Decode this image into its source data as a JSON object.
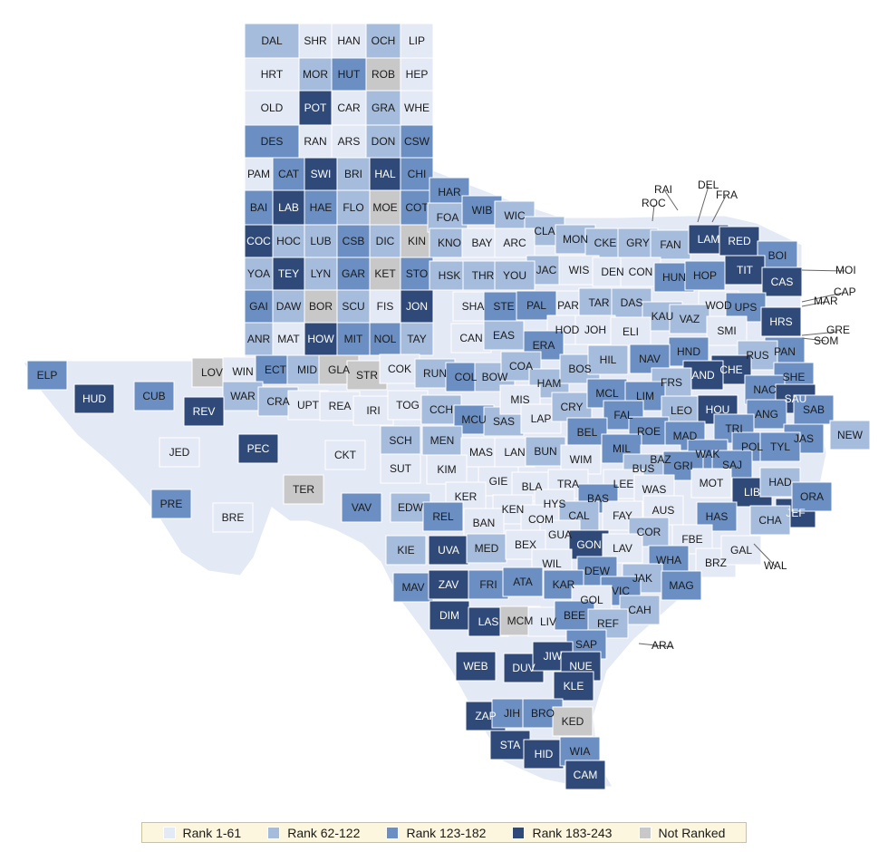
{
  "legend": {
    "items": [
      {
        "label": "Rank 1-61",
        "color": "#e4eaf5"
      },
      {
        "label": "Rank 62-122",
        "color": "#a6bcdc"
      },
      {
        "label": "Rank 123-182",
        "color": "#6b8fc2"
      },
      {
        "label": "Rank 183-243",
        "color": "#2f4a78"
      },
      {
        "label": "Not Ranked",
        "color": "#c8c8c8"
      }
    ]
  },
  "map": {
    "state_outline": "Texas",
    "callouts": [
      "RAI",
      "DEL",
      "FRA",
      "ROC",
      "MOI",
      "CAP",
      "MAR",
      "GRE",
      "SOM",
      "NEW",
      "WAL",
      "ARA"
    ],
    "grid_rows": [
      [
        [
          "DAL",
          2
        ],
        [
          "SHR",
          1
        ],
        [
          "HAN",
          1
        ],
        [
          "OCH",
          2
        ],
        [
          "LIP",
          1
        ]
      ],
      [
        [
          "HRT",
          1
        ],
        [
          "MOR",
          2
        ],
        [
          "HUT",
          3
        ],
        [
          "ROB",
          0
        ],
        [
          "HEP",
          1
        ]
      ],
      [
        [
          "OLD",
          1
        ],
        [
          "POT",
          4
        ],
        [
          "CAR",
          1
        ],
        [
          "GRA",
          2
        ],
        [
          "WHE",
          1
        ]
      ],
      [
        [
          "DES",
          3
        ],
        [
          "RAN",
          1
        ],
        [
          "ARS",
          1
        ],
        [
          "DON",
          2
        ],
        [
          "CSW",
          3
        ]
      ],
      [
        [
          "PAM",
          1
        ],
        [
          "CAT",
          3
        ],
        [
          "SWI",
          4
        ],
        [
          "BRI",
          2
        ],
        [
          "HAL",
          4
        ],
        [
          "CHI",
          3
        ]
      ],
      [
        [
          "BAI",
          3
        ],
        [
          "LAB",
          4
        ],
        [
          "HAE",
          3
        ],
        [
          "FLO",
          2
        ],
        [
          "MOE",
          0
        ],
        [
          "COT",
          3
        ]
      ],
      [
        [
          "COC",
          4
        ],
        [
          "HOC",
          2
        ],
        [
          "LUB",
          2
        ],
        [
          "CSB",
          3
        ],
        [
          "DIC",
          2
        ],
        [
          "KIN",
          0
        ]
      ],
      [
        [
          "YOA",
          2
        ],
        [
          "TEY",
          4
        ],
        [
          "LYN",
          2
        ],
        [
          "GAR",
          3
        ],
        [
          "KET",
          0
        ],
        [
          "STO",
          3
        ]
      ],
      [
        [
          "GAI",
          3
        ],
        [
          "DAW",
          2
        ],
        [
          "BOR",
          0
        ],
        [
          "SCU",
          2
        ],
        [
          "FIS",
          1
        ],
        [
          "JON",
          4
        ]
      ],
      [
        [
          "ANR",
          2
        ],
        [
          "MAT",
          1
        ],
        [
          "HOW",
          4
        ],
        [
          "MIT",
          3
        ],
        [
          "NOL",
          3
        ],
        [
          "TAY",
          2
        ]
      ]
    ],
    "placed": [
      [
        "HAR",
        3
      ],
      [
        "FOA",
        2
      ],
      [
        "WIB",
        3
      ],
      [
        "WIC",
        2
      ],
      [
        "CLA",
        2
      ],
      [
        "MON",
        2
      ],
      [
        "CKE",
        2
      ],
      [
        "GRY",
        2
      ],
      [
        "FAN",
        2
      ],
      [
        "LAM",
        4
      ],
      [
        "RED",
        4
      ],
      [
        "BOI",
        3
      ],
      [
        "KNO",
        2
      ],
      [
        "BAY",
        1
      ],
      [
        "ARC",
        1
      ],
      [
        "JAC",
        2
      ],
      [
        "WIS",
        1
      ],
      [
        "DEN",
        1
      ],
      [
        "CON",
        1
      ],
      [
        "HUN",
        3
      ],
      [
        "HOP",
        3
      ],
      [
        "TIT",
        4
      ],
      [
        "CAS",
        4
      ],
      [
        "HSK",
        2
      ],
      [
        "THR",
        2
      ],
      [
        "YOU",
        2
      ],
      [
        "PAR",
        1
      ],
      [
        "TAR",
        2
      ],
      [
        "DAS",
        2
      ],
      [
        "WOD",
        1
      ],
      [
        "UPS",
        3
      ],
      [
        "HRS",
        4
      ],
      [
        "KAU",
        2
      ],
      [
        "VAZ",
        2
      ],
      [
        "SMI",
        1
      ],
      [
        "PAN",
        3
      ],
      [
        "SHA",
        1
      ],
      [
        "STE",
        3
      ],
      [
        "PAL",
        3
      ],
      [
        "HOD",
        1
      ],
      [
        "JOH",
        1
      ],
      [
        "ELI",
        1
      ],
      [
        "ERA",
        3
      ],
      [
        "CAN",
        1
      ],
      [
        "EAS",
        2
      ],
      [
        "HND",
        3
      ],
      [
        "RUS",
        2
      ],
      [
        "NAV",
        3
      ],
      [
        "CHE",
        4
      ],
      [
        "SHE",
        3
      ],
      [
        "ELP",
        3
      ],
      [
        "HUD",
        4
      ],
      [
        "CUB",
        3
      ],
      [
        "LOV",
        0
      ],
      [
        "WIN",
        1
      ],
      [
        "ECT",
        3
      ],
      [
        "MID",
        2
      ],
      [
        "GLA",
        0
      ],
      [
        "STR",
        0
      ],
      [
        "COK",
        1
      ],
      [
        "RUN",
        2
      ],
      [
        "COL",
        3
      ],
      [
        "BOW",
        2
      ],
      [
        "COA",
        2
      ],
      [
        "HAM",
        2
      ],
      [
        "BOS",
        2
      ],
      [
        "HIL",
        2
      ],
      [
        "AND",
        4
      ],
      [
        "FRS",
        2
      ],
      [
        "NAC",
        3
      ],
      [
        "SAU",
        4
      ],
      [
        "SAB",
        3
      ],
      [
        "WAR",
        2
      ],
      [
        "CRA",
        2
      ],
      [
        "UPT",
        1
      ],
      [
        "REA",
        1
      ],
      [
        "IRI",
        1
      ],
      [
        "TOG",
        1
      ],
      [
        "CCH",
        2
      ],
      [
        "MCU",
        3
      ],
      [
        "SAS",
        2
      ],
      [
        "MIS",
        1
      ],
      [
        "LAP",
        1
      ],
      [
        "CRY",
        2
      ],
      [
        "MCL",
        3
      ],
      [
        "LIM",
        3
      ],
      [
        "LEO",
        2
      ],
      [
        "HOU",
        4
      ],
      [
        "ANG",
        3
      ],
      [
        "REV",
        4
      ],
      [
        "JED",
        1
      ],
      [
        "PEC",
        4
      ],
      [
        "CKT",
        1
      ],
      [
        "SCH",
        2
      ],
      [
        "MEN",
        2
      ],
      [
        "MAS",
        1
      ],
      [
        "LAN",
        1
      ],
      [
        "BUN",
        2
      ],
      [
        "FAL",
        3
      ],
      [
        "BEL",
        3
      ],
      [
        "ROE",
        3
      ],
      [
        "MAD",
        3
      ],
      [
        "TRI",
        3
      ],
      [
        "JAS",
        3
      ],
      [
        "POL",
        3
      ],
      [
        "TYL",
        3
      ],
      [
        "NEW",
        2
      ],
      [
        "TER",
        0
      ],
      [
        "SUT",
        1
      ],
      [
        "KIM",
        1
      ],
      [
        "GIE",
        1
      ],
      [
        "WIM",
        1
      ],
      [
        "MIL",
        3
      ],
      [
        "BAZ",
        1
      ],
      [
        "WAK",
        3
      ],
      [
        "GRI",
        3
      ],
      [
        "BUS",
        2
      ],
      [
        "SAJ",
        3
      ],
      [
        "MOT",
        1
      ],
      [
        "LIB",
        4
      ],
      [
        "HAD",
        2
      ],
      [
        "JEF",
        4
      ],
      [
        "ORA",
        3
      ],
      [
        "PRE",
        3
      ],
      [
        "BRE",
        1
      ],
      [
        "VAV",
        3
      ],
      [
        "EDW",
        2
      ],
      [
        "KER",
        1
      ],
      [
        "BLA",
        1
      ],
      [
        "TRA",
        1
      ],
      [
        "LEE",
        1
      ],
      [
        "WAS",
        1
      ],
      [
        "HAS",
        3
      ],
      [
        "KEN",
        1
      ],
      [
        "HYS",
        1
      ],
      [
        "BAS",
        3
      ],
      [
        "AUS",
        1
      ],
      [
        "CHA",
        2
      ],
      [
        "REL",
        3
      ],
      [
        "BAN",
        1
      ],
      [
        "COM",
        1
      ],
      [
        "CAL",
        2
      ],
      [
        "FAY",
        1
      ],
      [
        "GUA",
        1
      ],
      [
        "COR",
        2
      ],
      [
        "FBE",
        1
      ],
      [
        "KIE",
        2
      ],
      [
        "UVA",
        4
      ],
      [
        "MED",
        2
      ],
      [
        "BEX",
        1
      ],
      [
        "GON",
        4
      ],
      [
        "LAV",
        1
      ],
      [
        "WHA",
        3
      ],
      [
        "BRZ",
        1
      ],
      [
        "GAL",
        1
      ],
      [
        "WIL",
        1
      ],
      [
        "DEW",
        3
      ],
      [
        "KAR",
        3
      ],
      [
        "JAK",
        2
      ],
      [
        "MAV",
        3
      ],
      [
        "ZAV",
        4
      ],
      [
        "FRI",
        3
      ],
      [
        "ATA",
        3
      ],
      [
        "MAG",
        3
      ],
      [
        "VIC",
        3
      ],
      [
        "GOL",
        1
      ],
      [
        "CAH",
        2
      ],
      [
        "DIM",
        4
      ],
      [
        "LAS",
        4
      ],
      [
        "MCM",
        0
      ],
      [
        "LIV",
        1
      ],
      [
        "BEE",
        3
      ],
      [
        "REF",
        2
      ],
      [
        "SAP",
        3
      ],
      [
        "WEB",
        4
      ],
      [
        "DUV",
        4
      ],
      [
        "JIW",
        4
      ],
      [
        "NUE",
        4
      ],
      [
        "KLE",
        4
      ],
      [
        "ZAP",
        4
      ],
      [
        "JIH",
        3
      ],
      [
        "BRO",
        3
      ],
      [
        "KED",
        0
      ],
      [
        "STA",
        4
      ],
      [
        "HID",
        4
      ],
      [
        "WIA",
        3
      ],
      [
        "CAM",
        4
      ]
    ]
  }
}
